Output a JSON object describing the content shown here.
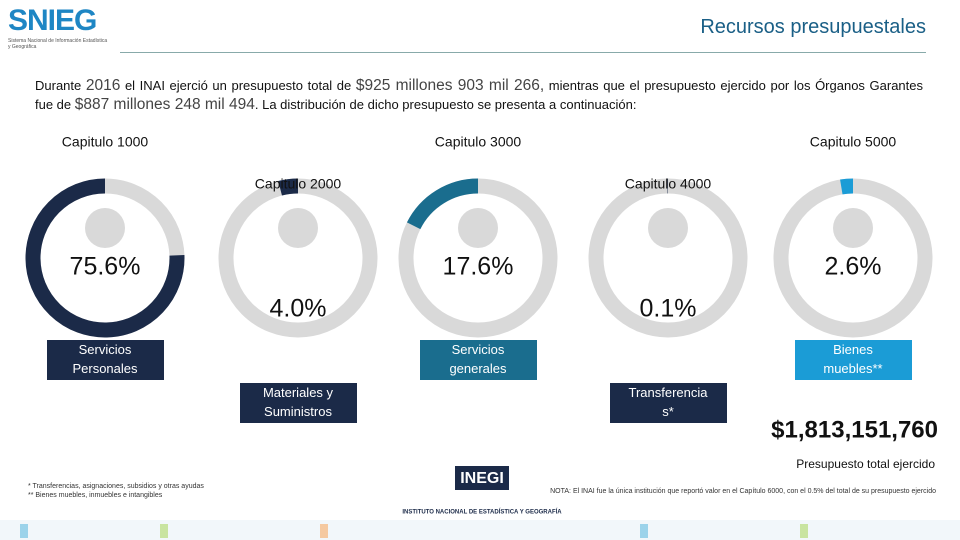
{
  "header": {
    "logo": "SNIEG",
    "logo_subtitle": "Sistema Nacional de Información Estadística y Geográfica",
    "title": "Recursos presupuestales"
  },
  "intro": [
    "Durante ",
    "2016",
    " el INAI ejerció un presupuesto total de ",
    "$925 millones 903 mil 266,",
    " mientras que el presupuesto ejercido por los Órganos Garantes fue de ",
    "$887 millones 248 mil 494",
    ". La distribución de dicho presupuesto se presenta a continuación:"
  ],
  "chart_data": {
    "type": "donut",
    "categories": [
      "Capitulo 1000",
      "Capitulo 2000",
      "Capitulo 3000",
      "Capitulo 4000",
      "Capitulo 5000"
    ],
    "descriptions": [
      "Servicios Personales",
      "Materiales y Suministros",
      "Servicios generales",
      "Transferencia s*",
      "Bienes muebles**"
    ],
    "values": [
      75.6,
      4.0,
      17.6,
      0.1,
      2.6
    ],
    "value_labels": [
      "75.6%",
      "4.0%",
      "17.6%",
      "0.1%",
      "2.6%"
    ],
    "colors": [
      "#1b2a48",
      "#1b2a48",
      "#1a6d8e",
      "#1b2a48",
      "#1b9cd6"
    ]
  },
  "total": {
    "value": "$1,813,151,760",
    "label": "Presupuesto total ejercido"
  },
  "footnotes": [
    "* Transferencias, asignaciones, subsidios y otras ayudas",
    "** Bienes muebles, inmuebles e intangibles"
  ],
  "note": "NOTA: El INAI fue la única institución que reportó valor en el Capítulo 6000, con el 0.5% del total de su presupuesto ejercido",
  "inegi": {
    "logo": "INEGI",
    "name": "INSTITUTO NACIONAL DE ESTADÍSTICA Y GEOGRAFÍA"
  }
}
